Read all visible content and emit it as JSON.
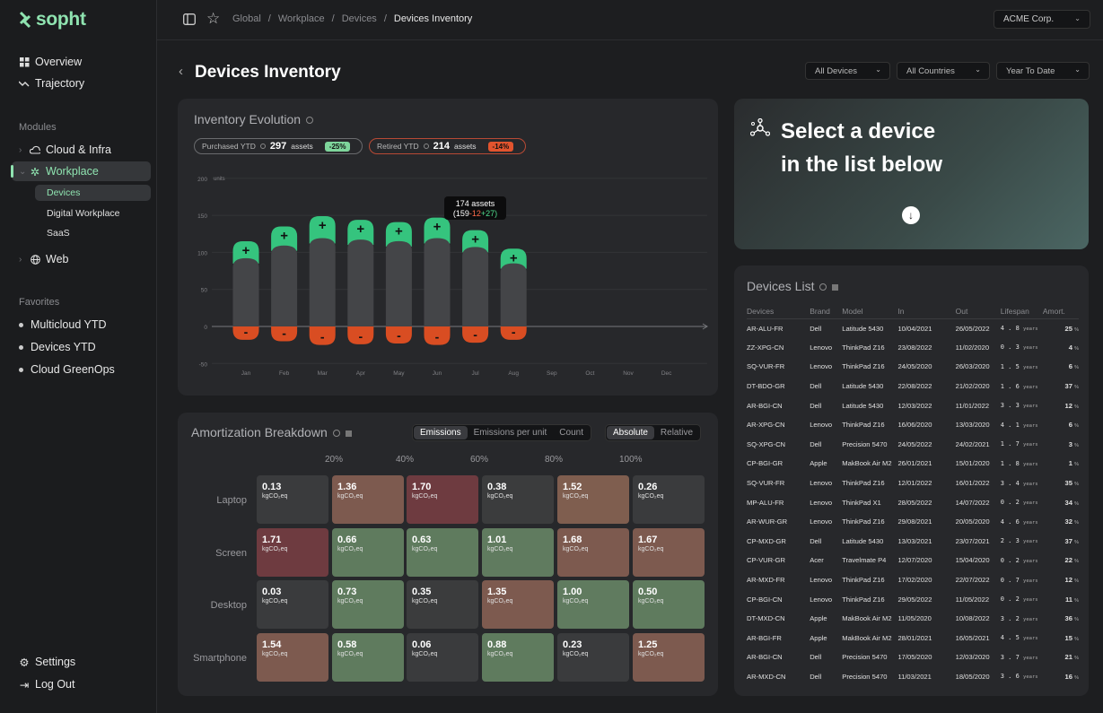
{
  "app": {
    "brand": "sopht",
    "org": "ACME Corp."
  },
  "nav": {
    "main": [
      {
        "label": "Overview",
        "icon": "grid-icon"
      },
      {
        "label": "Trajectory",
        "icon": "trend-icon"
      }
    ],
    "modules_label": "Modules",
    "modules": [
      {
        "label": "Cloud & Infra",
        "icon": "cloud-icon"
      },
      {
        "label": "Workplace",
        "icon": "workplace-icon",
        "active": true
      },
      {
        "label": "Web",
        "icon": "globe-icon"
      }
    ],
    "workplace_sub": [
      "Devices",
      "Digital Workplace",
      "SaaS"
    ],
    "favorites_label": "Favorites",
    "favorites": [
      "Multicloud YTD",
      "Devices YTD",
      "Cloud GreenOps"
    ],
    "settings": "Settings",
    "logout": "Log Out"
  },
  "breadcrumb": [
    "Global",
    "Workplace",
    "Devices",
    "Devices Inventory"
  ],
  "page": {
    "title": "Devices Inventory"
  },
  "filters": [
    "All Devices",
    "All Countries",
    "Year To Date"
  ],
  "evolution": {
    "title": "Inventory Evolution",
    "purchased": {
      "label": "Purchased YTD",
      "value": "297",
      "unit": "assets",
      "delta": "-25%"
    },
    "retired": {
      "label": "Retired YTD",
      "value": "214",
      "unit": "assets",
      "delta": "-14%"
    },
    "tooltip": {
      "title": "174 assets",
      "a": "(159",
      "b": "-12",
      "c": "+27)"
    }
  },
  "chart_data": {
    "type": "bar",
    "categories": [
      "Jan",
      "Feb",
      "Mar",
      "Apr",
      "May",
      "Jun",
      "Jul",
      "Aug",
      "Sep",
      "Oct",
      "Nov",
      "Dec"
    ],
    "ylabel": "units",
    "ylim": [
      -50,
      200
    ],
    "yticks": [
      200,
      150,
      100,
      50,
      0,
      -50
    ],
    "series": [
      {
        "values": [
          85,
          102,
          112,
          110,
          108,
          112,
          100,
          78,
          null,
          null,
          null,
          null
        ]
      },
      {
        "values": [
          30,
          33,
          37,
          34,
          33,
          35,
          30,
          27,
          null,
          null,
          null,
          null
        ]
      },
      {
        "values": [
          -18,
          -20,
          -25,
          -24,
          -23,
          -25,
          -22,
          -18,
          null,
          null,
          null,
          null
        ]
      }
    ],
    "plus_label": "+",
    "minus_label": "-"
  },
  "amort": {
    "title": "Amortization Breakdown",
    "tabs": [
      "Emissions",
      "Emissions per unit",
      "Count"
    ],
    "modes": [
      "Absolute",
      "Relative"
    ],
    "columns": [
      "20%",
      "40%",
      "60%",
      "80%",
      "100%"
    ],
    "unit": "kgCO₂eq",
    "rows": [
      {
        "label": "Laptop",
        "cells": [
          {
            "v": "0.13",
            "c": "#3a3b3d"
          },
          {
            "v": "1.36",
            "c": "#7d5a4f"
          },
          {
            "v": "1.70",
            "c": "#6e3b40"
          },
          {
            "v": "0.38",
            "c": "#3b3c3d"
          },
          {
            "v": "1.52",
            "c": "#7f5e4f"
          },
          {
            "v": "0.26",
            "c": "#3a3b3d"
          }
        ]
      },
      {
        "label": "Screen",
        "cells": [
          {
            "v": "1.71",
            "c": "#6e3b40"
          },
          {
            "v": "0.66",
            "c": "#5f7b5e"
          },
          {
            "v": "0.63",
            "c": "#5f7b5e"
          },
          {
            "v": "1.01",
            "c": "#607b5f"
          },
          {
            "v": "1.68",
            "c": "#7d5a4f"
          },
          {
            "v": "1.67",
            "c": "#7d5a4f"
          }
        ]
      },
      {
        "label": "Desktop",
        "cells": [
          {
            "v": "0.03",
            "c": "#3a3b3d"
          },
          {
            "v": "0.73",
            "c": "#5f7b5e"
          },
          {
            "v": "0.35",
            "c": "#3b3c3d"
          },
          {
            "v": "1.35",
            "c": "#7d5a4f"
          },
          {
            "v": "1.00",
            "c": "#607b5f"
          },
          {
            "v": "0.50",
            "c": "#5f7b5e"
          }
        ]
      },
      {
        "label": "Smartphone",
        "cells": [
          {
            "v": "1.54",
            "c": "#7d5a4f"
          },
          {
            "v": "0.58",
            "c": "#5f7b5e"
          },
          {
            "v": "0.06",
            "c": "#3a3b3d"
          },
          {
            "v": "0.88",
            "c": "#5f7b5e"
          },
          {
            "v": "0.23",
            "c": "#3a3b3d"
          },
          {
            "v": "1.25",
            "c": "#7d5a4f"
          }
        ]
      }
    ]
  },
  "select": {
    "line1": "Select a device",
    "line2": "in the list below"
  },
  "devices": {
    "title": "Devices List",
    "years": "years",
    "pct": "%",
    "headers": [
      "Devices",
      "Brand",
      "Model",
      "In",
      "Out",
      "Lifespan",
      "Amort."
    ],
    "rows": [
      [
        "AR-ALU-FR",
        "Dell",
        "Latitude 5430",
        "10/04/2021",
        "26/05/2022",
        "4.8",
        "25"
      ],
      [
        "ZZ-XPG-CN",
        "Lenovo",
        "ThinkPad Z16",
        "23/08/2022",
        "11/02/2020",
        "0.3",
        "4"
      ],
      [
        "SQ-VUR-FR",
        "Lenovo",
        "ThinkPad Z16",
        "24/05/2020",
        "26/03/2020",
        "1.5",
        "6"
      ],
      [
        "DT-BDO-GR",
        "Dell",
        "Latitude 5430",
        "22/08/2022",
        "21/02/2020",
        "1.6",
        "37"
      ],
      [
        "AR-BGI-CN",
        "Dell",
        "Latitude 5430",
        "12/03/2022",
        "11/01/2022",
        "3.3",
        "12"
      ],
      [
        "AR-XPG-CN",
        "Lenovo",
        "ThinkPad Z16",
        "16/06/2020",
        "13/03/2020",
        "4.1",
        "6"
      ],
      [
        "SQ-XPG-CN",
        "Dell",
        "Precision 5470",
        "24/05/2022",
        "24/02/2021",
        "1.7",
        "3"
      ],
      [
        "CP-BGI-GR",
        "Apple",
        "MakBook Air M2",
        "26/01/2021",
        "15/01/2020",
        "1.8",
        "1"
      ],
      [
        "SQ-VUR-FR",
        "Lenovo",
        "ThinkPad Z16",
        "12/01/2022",
        "16/01/2022",
        "3.4",
        "35"
      ],
      [
        "MP-ALU-FR",
        "Lenovo",
        "ThinkPad X1",
        "28/05/2022",
        "14/07/2022",
        "0.2",
        "34"
      ],
      [
        "AR-WUR-GR",
        "Lenovo",
        "ThinkPad Z16",
        "29/08/2021",
        "20/05/2020",
        "4.6",
        "32"
      ],
      [
        "CP-MXD-GR",
        "Dell",
        "Latitude 5430",
        "13/03/2021",
        "23/07/2021",
        "2.3",
        "37"
      ],
      [
        "CP-VUR-GR",
        "Acer",
        "Travelmate P4",
        "12/07/2020",
        "15/04/2020",
        "0.2",
        "22"
      ],
      [
        "AR-MXD-FR",
        "Lenovo",
        "ThinkPad Z16",
        "17/02/2020",
        "22/07/2022",
        "0.7",
        "12"
      ],
      [
        "CP-BGI-CN",
        "Lenovo",
        "ThinkPad Z16",
        "29/05/2022",
        "11/05/2022",
        "0.2",
        "11"
      ],
      [
        "DT-MXD-CN",
        "Apple",
        "MakBook Air M2",
        "11/05/2020",
        "10/08/2022",
        "3.2",
        "36"
      ],
      [
        "AR-BGI-FR",
        "Apple",
        "MakBook Air M2",
        "28/01/2021",
        "16/05/2021",
        "4.5",
        "15"
      ],
      [
        "AR-BGI-CN",
        "Dell",
        "Precision 5470",
        "17/05/2020",
        "12/03/2020",
        "3.7",
        "21"
      ],
      [
        "AR-MXD-CN",
        "Dell",
        "Precision 5470",
        "11/03/2021",
        "18/05/2020",
        "3.6",
        "16"
      ]
    ]
  }
}
